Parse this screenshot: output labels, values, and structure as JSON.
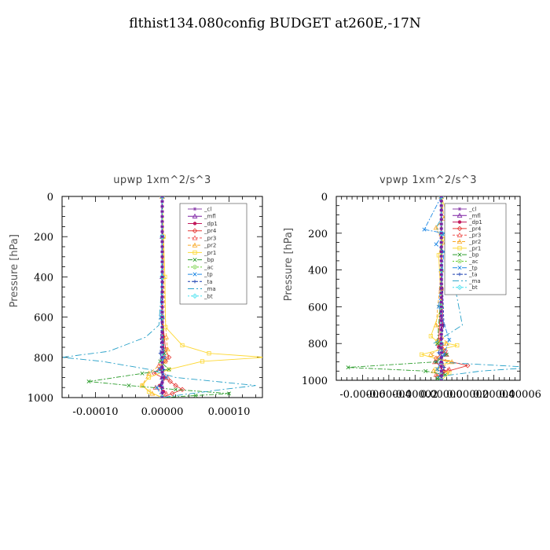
{
  "page_title": "flthist134.080config  BUDGET at260E,-17N",
  "colors": {
    "_cl": "#8e44ad",
    "_mfl": "#7b1fa2",
    "_dp1": "#c2185b",
    "_pr4": "#e53935",
    "_pr3": "#ef5350",
    "_pr2": "#f9a825",
    "_pr1": "#fdd835",
    "_bp": "#2e9e2e",
    "_ac": "#66cc33",
    "_tp": "#1e88e5",
    "_ta": "#1a3fb0",
    "_ma": "#26a0c8",
    "_bt": "#40e0f0"
  },
  "chart_data": [
    {
      "type": "line",
      "title": "upwp   1xm^2/s^3",
      "xlabel": "",
      "ylabel": "Pressure  [hPa]",
      "xlim": [
        -0.00015,
        0.00015
      ],
      "ylim": [
        1000,
        0
      ],
      "xticks": [
        -0.0001,
        0.0,
        0.0001
      ],
      "xtick_labels": [
        "-0.00010",
        "0.00000",
        "0.00010"
      ],
      "yticks": [
        0,
        200,
        400,
        600,
        800,
        1000
      ],
      "ytick_labels": [
        "0",
        "200",
        "400",
        "600",
        "800",
        "1000"
      ],
      "legend": [
        "_cl",
        "_mfl",
        "_dp1",
        "_pr4",
        "_pr3",
        "_pr2",
        "_pr1",
        "_bp",
        "_ac",
        "_tp",
        "_ta",
        "_ma",
        "_bt"
      ],
      "legend_position": "top-right",
      "series": [
        {
          "name": "_cl",
          "x": [
            0,
            0,
            0,
            0,
            0,
            0,
            0
          ],
          "y": [
            0,
            200,
            400,
            600,
            800,
            900,
            1000
          ]
        },
        {
          "name": "_mfl",
          "x": [
            0,
            0,
            0,
            0,
            0,
            0,
            0
          ],
          "y": [
            0,
            200,
            400,
            600,
            800,
            900,
            1000
          ]
        },
        {
          "name": "_dp1",
          "x": [
            0,
            0,
            0,
            2e-06,
            3e-06,
            -3e-06,
            4e-06,
            -4e-06,
            2e-06,
            0
          ],
          "y": [
            0,
            200,
            500,
            700,
            800,
            860,
            900,
            940,
            970,
            1000
          ]
        },
        {
          "name": "_pr4",
          "x": [
            0,
            0,
            5e-06,
            1e-05,
            5e-06,
            -1.2e-05,
            1.2e-05,
            2e-05,
            3e-05,
            1.5e-05,
            0
          ],
          "y": [
            0,
            600,
            760,
            800,
            820,
            880,
            920,
            940,
            960,
            980,
            1000
          ]
        },
        {
          "name": "_pr3",
          "x": [
            0,
            0,
            3e-06,
            -5e-06,
            8e-06,
            -1e-05,
            6e-06,
            0
          ],
          "y": [
            0,
            700,
            800,
            840,
            900,
            950,
            980,
            1000
          ]
        },
        {
          "name": "_pr2",
          "x": [
            0,
            1e-06,
            2e-06,
            6e-06,
            8e-06,
            4e-06,
            -2e-05,
            -3e-05,
            -1.5e-05,
            0
          ],
          "y": [
            0,
            200,
            400,
            700,
            760,
            820,
            880,
            940,
            980,
            1000
          ]
        },
        {
          "name": "_pr1",
          "x": [
            0,
            2e-06,
            4e-06,
            5e-06,
            3e-05,
            7e-05,
            0.000155,
            6e-05,
            1e-05,
            -2e-05,
            -3e-05,
            -2e-05,
            0
          ],
          "y": [
            0,
            200,
            400,
            650,
            740,
            780,
            800,
            820,
            860,
            900,
            940,
            970,
            1000
          ]
        },
        {
          "name": "_bp",
          "x": [
            0,
            0,
            0,
            3e-06,
            -3e-06,
            1e-05,
            -3e-05,
            -0.00011,
            -5e-05,
            2e-05,
            0.0001,
            5e-05,
            0
          ],
          "y": [
            0,
            200,
            600,
            780,
            820,
            860,
            880,
            920,
            940,
            960,
            980,
            990,
            1000
          ]
        },
        {
          "name": "_ac",
          "x": [
            0,
            0,
            0,
            0,
            0,
            0
          ],
          "y": [
            0,
            200,
            400,
            600,
            800,
            1000
          ]
        },
        {
          "name": "_tp",
          "x": [
            0,
            0,
            -2e-06,
            3e-06,
            -4e-06,
            6e-06,
            -8e-06,
            0
          ],
          "y": [
            0,
            200,
            600,
            800,
            860,
            900,
            950,
            1000
          ]
        },
        {
          "name": "_ta",
          "x": [
            0,
            0,
            -3e-06,
            2e-06,
            -2e-06,
            0
          ],
          "y": [
            0,
            500,
            780,
            860,
            940,
            1000
          ]
        },
        {
          "name": "_ma",
          "x": [
            0,
            0,
            -5e-06,
            -2.5e-05,
            -8e-05,
            -0.00015,
            -9e-05,
            -2e-05,
            2e-05,
            0.00014,
            9e-05,
            2e-05,
            0
          ],
          "y": [
            0,
            400,
            640,
            700,
            770,
            800,
            820,
            860,
            900,
            940,
            960,
            990,
            1000
          ]
        },
        {
          "name": "_bt",
          "x": [
            0,
            0,
            0,
            0,
            0,
            0
          ],
          "y": [
            0,
            200,
            400,
            600,
            800,
            1000
          ]
        }
      ]
    },
    {
      "type": "line",
      "title": "vpwp   1xm^2/s^3",
      "xlabel": "",
      "ylabel": "Pressure  [hPa]",
      "xlim": [
        -8e-05,
        6e-05
      ],
      "ylim": [
        1000,
        0
      ],
      "xticks": [
        -6e-05,
        -4e-05,
        -2e-05,
        0.0,
        2e-05,
        4e-05,
        6e-05
      ],
      "xtick_labels": [
        "-0.00006",
        "-0.00004",
        "-0.00002",
        "0.00000",
        "0.00002",
        "0.00004",
        "0.00006"
      ],
      "yticks": [
        0,
        200,
        400,
        600,
        800,
        1000
      ],
      "ytick_labels": [
        "0",
        "200",
        "400",
        "600",
        "800",
        "1000"
      ],
      "legend": [
        "_cl",
        "_mfl",
        "_dp1",
        "_pr4",
        "_pr3",
        "_pr2",
        "_pr1",
        "_bp",
        "_ac",
        "_tp",
        "_ta",
        "_ma",
        "_bt"
      ],
      "legend_position": "top-right",
      "series": [
        {
          "name": "_cl",
          "x": [
            0,
            0,
            0,
            0,
            0,
            0,
            0
          ],
          "y": [
            0,
            200,
            400,
            600,
            800,
            900,
            1000
          ]
        },
        {
          "name": "_mfl",
          "x": [
            0,
            0,
            0,
            0,
            0,
            0,
            0
          ],
          "y": [
            0,
            200,
            400,
            600,
            800,
            900,
            1000
          ]
        },
        {
          "name": "_dp1",
          "x": [
            0,
            0,
            1e-06,
            -2e-06,
            3e-06,
            -4e-06,
            2e-06,
            0
          ],
          "y": [
            0,
            300,
            700,
            820,
            860,
            900,
            950,
            1000
          ]
        },
        {
          "name": "_pr4",
          "x": [
            0,
            0,
            -2e-06,
            3e-06,
            -4e-06,
            2e-05,
            5e-06,
            -3e-06,
            0
          ],
          "y": [
            0,
            500,
            780,
            840,
            880,
            920,
            950,
            980,
            1000
          ]
        },
        {
          "name": "_pr3",
          "x": [
            0,
            0,
            -2e-06,
            4e-06,
            -5e-06,
            6e-06,
            -4e-06,
            0
          ],
          "y": [
            0,
            500,
            800,
            860,
            900,
            940,
            970,
            1000
          ]
        },
        {
          "name": "_pr2",
          "x": [
            0,
            2e-06,
            -4e-06,
            1e-06,
            0,
            -4e-06,
            4e-06,
            -8e-06,
            8e-06,
            -6e-06,
            0
          ],
          "y": [
            0,
            120,
            170,
            250,
            400,
            700,
            800,
            860,
            900,
            950,
            1000
          ]
        },
        {
          "name": "_pr1",
          "x": [
            0,
            8e-06,
            1e-06,
            -2e-06,
            0,
            -8e-06,
            -3e-06,
            1.2e-05,
            -1.5e-05,
            5e-06,
            -4e-06,
            6e-06,
            0
          ],
          "y": [
            0,
            180,
            230,
            320,
            600,
            760,
            790,
            810,
            860,
            900,
            940,
            960,
            1000
          ]
        },
        {
          "name": "_bp",
          "x": [
            0,
            0,
            -3e-06,
            4e-06,
            -4e-06,
            -7.1e-05,
            -1.2e-05,
            3e-06,
            -3e-06,
            0
          ],
          "y": [
            0,
            500,
            800,
            860,
            900,
            930,
            950,
            970,
            990,
            1000
          ]
        },
        {
          "name": "_ac",
          "x": [
            0,
            0,
            0,
            0,
            0,
            0
          ],
          "y": [
            0,
            200,
            400,
            600,
            800,
            1000
          ]
        },
        {
          "name": "_tp",
          "x": [
            0,
            -1.3e-05,
            2e-06,
            -4e-06,
            2e-06,
            -2e-06,
            6e-06,
            2e-06,
            -3e-06,
            0
          ],
          "y": [
            0,
            180,
            200,
            260,
            300,
            600,
            780,
            860,
            940,
            1000
          ]
        },
        {
          "name": "_ta",
          "x": [
            0,
            0,
            2e-06,
            -2e-06,
            2e-06,
            0
          ],
          "y": [
            0,
            300,
            700,
            850,
            930,
            1000
          ]
        },
        {
          "name": "_ma",
          "x": [
            0,
            0,
            -4e-06,
            3e-06,
            1.6e-05,
            -6e-06,
            3e-06,
            -5e-06,
            7e-05,
            3e-05,
            -3e-06,
            0
          ],
          "y": [
            0,
            120,
            170,
            220,
            700,
            800,
            850,
            900,
            930,
            950,
            980,
            1000
          ]
        },
        {
          "name": "_bt",
          "x": [
            0,
            0,
            0,
            0,
            0,
            0
          ],
          "y": [
            0,
            200,
            400,
            600,
            800,
            1000
          ]
        }
      ]
    }
  ]
}
